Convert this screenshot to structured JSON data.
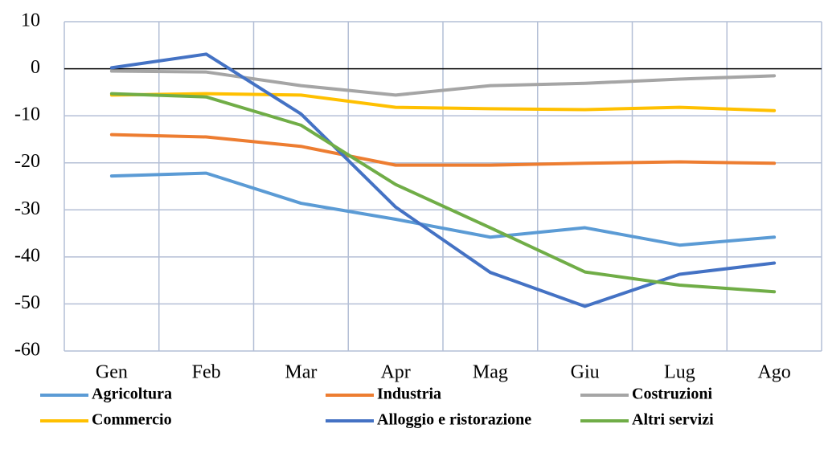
{
  "chart_data": {
    "type": "line",
    "categories": [
      "Gen",
      "Feb",
      "Mar",
      "Apr",
      "Mag",
      "Giu",
      "Lug",
      "Ago"
    ],
    "series": [
      {
        "name": "Agricoltura",
        "color": "#5b9bd5",
        "values": [
          -22.8,
          -22.2,
          -28.6,
          -32,
          -35.8,
          -33.8,
          -37.5,
          -35.8
        ]
      },
      {
        "name": "Industria",
        "color": "#ed7d31",
        "values": [
          -14,
          -14.5,
          -16.5,
          -20.5,
          -20.5,
          -20.1,
          -19.8,
          -20.1
        ]
      },
      {
        "name": "Costruzioni",
        "color": "#a5a5a5",
        "values": [
          -0.5,
          -0.7,
          -3.6,
          -5.6,
          -3.6,
          -3.1,
          -2.2,
          -1.5
        ]
      },
      {
        "name": "Commercio",
        "color": "#ffc000",
        "values": [
          -5.6,
          -5.3,
          -5.6,
          -8.2,
          -8.5,
          -8.7,
          -8.2,
          -8.9
        ]
      },
      {
        "name": "Alloggio e ristorazione",
        "color": "#4472c4",
        "values": [
          0.2,
          3.1,
          -9.6,
          -29.4,
          -43.3,
          -50.5,
          -43.7,
          -41.3
        ]
      },
      {
        "name": "Altri servizi",
        "color": "#70ad47",
        "values": [
          -5.3,
          -6,
          -12,
          -24.6,
          -33.8,
          -43.2,
          -46,
          -47.4
        ]
      }
    ],
    "ylim": [
      -60,
      10
    ],
    "yticks": [
      -60,
      -50,
      -40,
      -30,
      -20,
      -10,
      0,
      10
    ],
    "grid": true
  }
}
